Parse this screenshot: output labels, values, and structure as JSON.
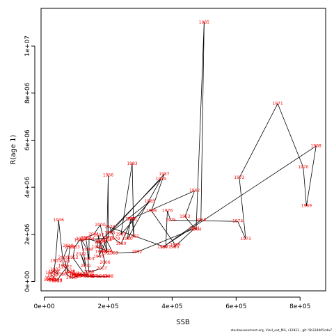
{
  "chart_data": {
    "type": "line",
    "xlabel": "SSB",
    "ylabel": "R(age 1)",
    "xlim": [
      -10000,
      880000
    ],
    "ylim": [
      -400000,
      11600000
    ],
    "x_ticks": [
      0,
      200000,
      400000,
      600000,
      800000
    ],
    "x_tick_labels": [
      "0e+00",
      "2e+05",
      "4e+05",
      "6e+05",
      "8e+05"
    ],
    "y_ticks": [
      0,
      2000000,
      4000000,
      6000000,
      8000000,
      10000000
    ],
    "y_tick_labels": [
      "0e+00",
      "2e+06",
      "4e+06",
      "6e+06",
      "8e+06",
      "1e+07"
    ],
    "grid": false,
    "point_color": "#ff0000",
    "line_color": "#000000",
    "series": [
      {
        "points": [
          {
            "year": "1925",
            "ssb": 15000,
            "r": 60000
          },
          {
            "year": "1926",
            "ssb": 18000,
            "r": 130000
          },
          {
            "year": "1927",
            "ssb": 22000,
            "r": 80000
          },
          {
            "year": "1928",
            "ssb": 30000,
            "r": 40000
          },
          {
            "year": "1929",
            "ssb": 40000,
            "r": 20000
          },
          {
            "year": "1930",
            "ssb": 25000,
            "r": 250000
          },
          {
            "year": "1931",
            "ssb": 20000,
            "r": 350000
          },
          {
            "year": "1932",
            "ssb": 35000,
            "r": 500000
          },
          {
            "year": "1933",
            "ssb": 45000,
            "r": 300000
          },
          {
            "year": "1934",
            "ssb": 30000,
            "r": 420000
          },
          {
            "year": "1935",
            "ssb": 35000,
            "r": 870000
          },
          {
            "year": "1936",
            "ssb": 45000,
            "r": 2600000
          },
          {
            "year": "1937",
            "ssb": 60000,
            "r": 670000
          },
          {
            "year": "1938",
            "ssb": 80000,
            "r": 420000
          },
          {
            "year": "1939",
            "ssb": 95000,
            "r": 250000
          },
          {
            "year": "1940",
            "ssb": 110000,
            "r": 220000
          },
          {
            "year": "1941",
            "ssb": 120000,
            "r": 300000
          },
          {
            "year": "1942",
            "ssb": 95000,
            "r": 320000
          },
          {
            "year": "1943",
            "ssb": 80000,
            "r": 380000
          },
          {
            "year": "1944",
            "ssb": 100000,
            "r": 280000
          },
          {
            "year": "1945",
            "ssb": 140000,
            "r": 200000
          },
          {
            "year": "1946",
            "ssb": 160000,
            "r": 200000
          },
          {
            "year": "1947",
            "ssb": 180000,
            "r": 200000
          },
          {
            "year": "1948",
            "ssb": 200000,
            "r": 200000
          },
          {
            "year": "1949",
            "ssb": 190000,
            "r": 200000
          },
          {
            "year": "1950",
            "ssb": 150000,
            "r": 220000
          },
          {
            "year": "1951",
            "ssb": 130000,
            "r": 230000
          },
          {
            "year": "1952",
            "ssb": 90000,
            "r": 1000000
          },
          {
            "year": "1953",
            "ssb": 95000,
            "r": 1450000
          },
          {
            "year": "1954",
            "ssb": 110000,
            "r": 1750000
          },
          {
            "year": "1955",
            "ssb": 200000,
            "r": 1850000
          },
          {
            "year": "1956",
            "ssb": 200000,
            "r": 4500000
          },
          {
            "year": "1957",
            "ssb": 195000,
            "r": 1200000
          },
          {
            "year": "1958",
            "ssb": 175000,
            "r": 1700000
          },
          {
            "year": "1959",
            "ssb": 365000,
            "r": 4350000
          },
          {
            "year": "1960",
            "ssb": 260000,
            "r": 1800000
          },
          {
            "year": "1961",
            "ssb": 270000,
            "r": 2650000
          },
          {
            "year": "1962",
            "ssb": 470000,
            "r": 3850000
          },
          {
            "year": "1963",
            "ssb": 440000,
            "r": 2750000
          },
          {
            "year": "1964",
            "ssb": 475000,
            "r": 2200000
          },
          {
            "year": "1965",
            "ssb": 500000,
            "r": 11000000
          },
          {
            "year": "1966",
            "ssb": 490000,
            "r": 2600000
          },
          {
            "year": "1967",
            "ssb": 370000,
            "r": 1450000
          },
          {
            "year": "1968",
            "ssb": 850000,
            "r": 5750000
          },
          {
            "year": "1969",
            "ssb": 820000,
            "r": 3200000
          },
          {
            "year": "1970",
            "ssb": 810000,
            "r": 4850000
          },
          {
            "year": "1971",
            "ssb": 730000,
            "r": 7550000
          },
          {
            "year": "1972",
            "ssb": 610000,
            "r": 4400000
          },
          {
            "year": "1973",
            "ssb": 630000,
            "r": 1800000
          },
          {
            "year": "1974",
            "ssb": 605000,
            "r": 2550000
          },
          {
            "year": "1975",
            "ssb": 395000,
            "r": 2600000
          },
          {
            "year": "1976",
            "ssb": 385000,
            "r": 3000000
          },
          {
            "year": "1977",
            "ssb": 380000,
            "r": 1450000
          },
          {
            "year": "1978",
            "ssb": 205000,
            "r": 2300000
          },
          {
            "year": "1979",
            "ssb": 220000,
            "r": 1800000
          },
          {
            "year": "1980",
            "ssb": 240000,
            "r": 1600000
          },
          {
            "year": "1981",
            "ssb": 275000,
            "r": 2650000
          },
          {
            "year": "1982",
            "ssb": 280000,
            "r": 1900000
          },
          {
            "year": "1983",
            "ssb": 275000,
            "r": 5000000
          },
          {
            "year": "1984",
            "ssb": 240000,
            "r": 2000000
          },
          {
            "year": "1985",
            "ssb": 330000,
            "r": 3400000
          },
          {
            "year": "1986",
            "ssb": 205000,
            "r": 2050000
          },
          {
            "year": "1987",
            "ssb": 375000,
            "r": 4550000
          },
          {
            "year": "1988",
            "ssb": 335000,
            "r": 3000000
          },
          {
            "year": "1989",
            "ssb": 410000,
            "r": 1550000
          },
          {
            "year": "1990",
            "ssb": 405000,
            "r": 1450000
          },
          {
            "year": "1991",
            "ssb": 470000,
            "r": 2250000
          },
          {
            "year": "1992",
            "ssb": 290000,
            "r": 1250000
          },
          {
            "year": "1993",
            "ssb": 215000,
            "r": 1200000
          },
          {
            "year": "1994",
            "ssb": 195000,
            "r": 1750000
          },
          {
            "year": "1995",
            "ssb": 170000,
            "r": 1050000
          },
          {
            "year": "1996",
            "ssb": 175000,
            "r": 1250000
          },
          {
            "year": "1997",
            "ssb": 170000,
            "r": 1950000
          },
          {
            "year": "1998",
            "ssb": 165000,
            "r": 1450000
          },
          {
            "year": "1999",
            "ssb": 195000,
            "r": 1300000
          },
          {
            "year": "2000",
            "ssb": 175000,
            "r": 2400000
          },
          {
            "year": "2001",
            "ssb": 155000,
            "r": 2000000
          },
          {
            "year": "2002",
            "ssb": 130000,
            "r": 1850000
          },
          {
            "year": "2003",
            "ssb": 140000,
            "r": 950000
          },
          {
            "year": "2004",
            "ssb": 140000,
            "r": 1800000
          },
          {
            "year": "2005",
            "ssb": 175000,
            "r": 1650000
          },
          {
            "year": "2006",
            "ssb": 190000,
            "r": 800000
          },
          {
            "year": "2007",
            "ssb": 180000,
            "r": 550000
          },
          {
            "year": "2008",
            "ssb": 140000,
            "r": 400000
          },
          {
            "year": "2009",
            "ssb": 135000,
            "r": 1350000
          },
          {
            "year": "2010",
            "ssb": 115000,
            "r": 1800000
          },
          {
            "year": "2011",
            "ssb": 130000,
            "r": 650000
          },
          {
            "year": "2012",
            "ssb": 115000,
            "r": 1150000
          },
          {
            "year": "2013",
            "ssb": 135000,
            "r": 300000
          },
          {
            "year": "2014",
            "ssb": 110000,
            "r": 250000
          },
          {
            "year": "2015",
            "ssb": 100000,
            "r": 200000
          },
          {
            "year": "2016",
            "ssb": 85000,
            "r": 150000
          },
          {
            "year": "2017",
            "ssb": 70000,
            "r": 300000
          },
          {
            "year": "2018",
            "ssb": 80000,
            "r": 1450000
          },
          {
            "year": "2019",
            "ssb": 75000,
            "r": 1500000
          },
          {
            "year": "2020",
            "ssb": 60000,
            "r": 1000000
          },
          {
            "year": "2021",
            "ssb": 65000,
            "r": 850000
          },
          {
            "year": "2022",
            "ssb": 70000,
            "r": 600000
          },
          {
            "year": "2023",
            "ssb": 40000,
            "r": 50000
          }
        ]
      }
    ]
  },
  "footer_text": "stockassessment.org, ViaH_ext_MG, r12823 , git: 5b334405cda7"
}
